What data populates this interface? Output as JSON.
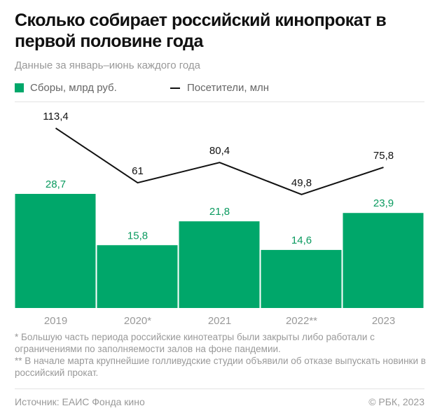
{
  "title": "Сколько собирает российский кинопрокат в первой половине года",
  "subtitle": "Данные за январь–июнь каждого года",
  "notes": [
    "* Большую часть периода российские кинотеатры были закрыты либо работали с ограничениями по заполняемости залов на фоне пандемии.",
    "** В начале марта крупнейшие голливудские студии объявили об отказе выпускать новинки в российский прокат."
  ],
  "source": "Источник: ЕАИС Фонда кино",
  "copyright": "© РБК, 2023",
  "chart_data": {
    "type": "bar+line",
    "categories": [
      "2019",
      "2020*",
      "2021",
      "2022**",
      "2023"
    ],
    "legend_position": "top-left",
    "grid": false,
    "series": [
      {
        "name": "Сборы, млрд руб.",
        "type": "bar",
        "color": "#00a76a",
        "values": [
          28.7,
          15.8,
          21.8,
          14.6,
          23.9
        ],
        "labels": [
          "28,7",
          "15,8",
          "21,8",
          "14,6",
          "23,9"
        ]
      },
      {
        "name": "Посетители, млн",
        "type": "line",
        "color": "#111111",
        "values": [
          113.4,
          61,
          80.4,
          49.8,
          75.8
        ],
        "labels": [
          "113,4",
          "61",
          "80,4",
          "49,8",
          "75,8"
        ]
      }
    ]
  }
}
